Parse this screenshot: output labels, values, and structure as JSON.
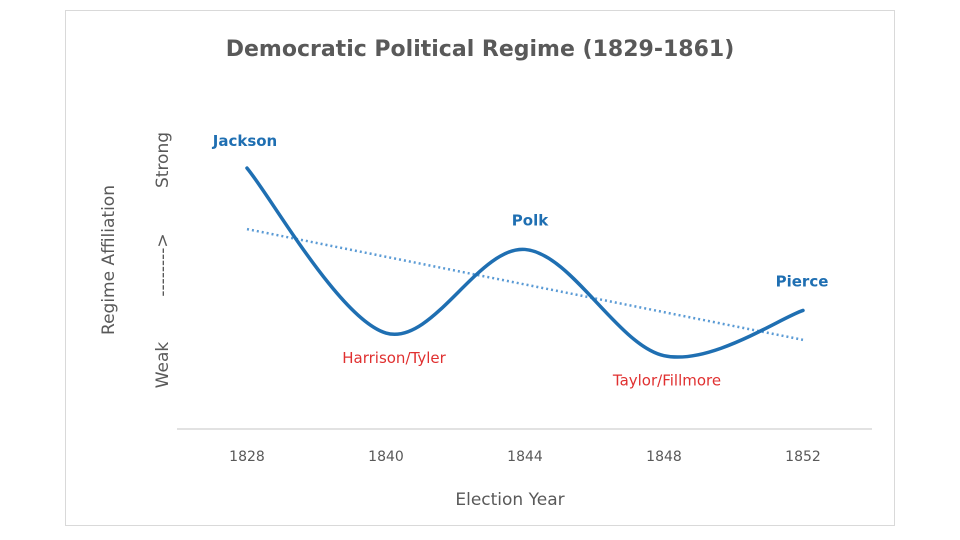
{
  "chart_data": {
    "type": "line",
    "title": "Democratic Political Regime (1829-1861)",
    "xlabel": "Election Year",
    "ylabel": {
      "main": "Regime Affiliation",
      "low": "Weak",
      "arrow": "-------->",
      "high": "Strong"
    },
    "categories": [
      "1828",
      "1840",
      "1844",
      "1848",
      "1852"
    ],
    "ylim": [
      0,
      10
    ],
    "grid": false,
    "legend": "none",
    "series": [
      {
        "name": "Regime Affiliation",
        "color": "#1f6fb2",
        "style": "solid",
        "smooth": true,
        "values": [
          9.2,
          1.9,
          5.6,
          0.9,
          2.9
        ]
      },
      {
        "name": "Linear Trend",
        "color": "#5b9bd5",
        "style": "dotted",
        "values": [
          6.5,
          5.3,
          4.0,
          2.8,
          1.6
        ]
      }
    ],
    "annotations": [
      {
        "text": "Jackson",
        "category": "1828",
        "color": "#1f6fb2",
        "bold": true,
        "position": "above"
      },
      {
        "text": "Harrison/Tyler",
        "category": "1840",
        "color": "#e03030",
        "bold": false,
        "position": "below"
      },
      {
        "text": "Polk",
        "category": "1844",
        "color": "#1f6fb2",
        "bold": true,
        "position": "above"
      },
      {
        "text": "Taylor/Fillmore",
        "category": "1848",
        "color": "#e03030",
        "bold": false,
        "position": "below"
      },
      {
        "text": "Pierce",
        "category": "1852",
        "color": "#1f6fb2",
        "bold": true,
        "position": "above"
      }
    ]
  },
  "colors": {
    "axis": "#d9d9d9",
    "text": "#595959"
  }
}
